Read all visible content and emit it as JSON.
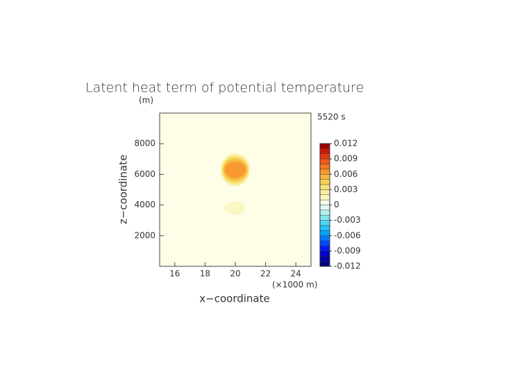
{
  "chart_data": {
    "type": "contourf",
    "title": "Latent heat term of potential temperature",
    "y_unit": "(m)",
    "time_label": "5520 s",
    "xlabel": "x−coordinate",
    "ylabel": "z−coordinate",
    "x_unit": "(×1000 m)",
    "xlim": [
      15,
      25
    ],
    "xticks": [
      16,
      18,
      20,
      22,
      24
    ],
    "ylim": [
      0,
      10000
    ],
    "yticks": [
      2000,
      4000,
      6000,
      8000
    ],
    "background_value": 0.0005,
    "features": [
      {
        "x": 20,
        "z": 6300,
        "peak": 0.007
      },
      {
        "x": 20,
        "z": 3800,
        "peak": 0.002
      }
    ],
    "colorbar": {
      "levels": [
        -0.012,
        -0.011,
        -0.01,
        -0.009,
        -0.008,
        -0.007,
        -0.006,
        -0.005,
        -0.004,
        -0.003,
        -0.002,
        -0.001,
        0,
        0.001,
        0.002,
        0.003,
        0.004,
        0.005,
        0.006,
        0.007,
        0.008,
        0.009,
        0.01,
        0.011,
        0.012
      ],
      "colors": [
        "#00007f",
        "#0000a8",
        "#0000d0",
        "#0018f4",
        "#0048ff",
        "#0078ff",
        "#00a4ff",
        "#20c0ff",
        "#48d8f4",
        "#84e8f0",
        "#b4f2f2",
        "#e0fafa",
        "#fdfde8",
        "#fbf7c4",
        "#f8ee9c",
        "#f8e47c",
        "#f8d058",
        "#f8b840",
        "#f89830",
        "#f87820",
        "#f05818",
        "#e03810",
        "#cc1c08",
        "#a00000"
      ],
      "ticks": [
        -0.012,
        -0.009,
        -0.006,
        -0.003,
        0,
        0.003,
        0.006,
        0.009,
        0.012
      ]
    }
  }
}
